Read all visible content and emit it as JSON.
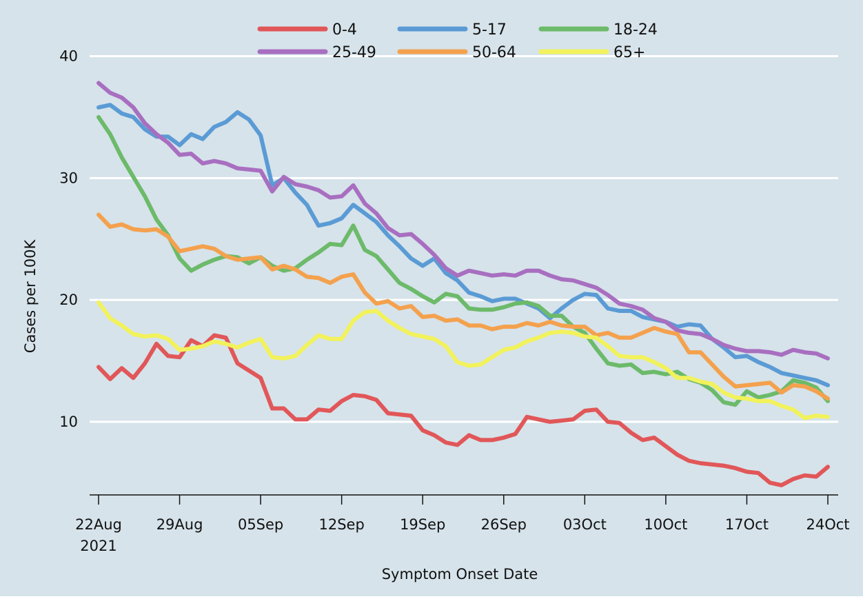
{
  "chart_data": {
    "type": "line",
    "title": "",
    "xlabel": "Symptom Onset Date",
    "ylabel": "Cases per 100K",
    "ylim": [
      4,
      41.5
    ],
    "yticks": [
      10,
      20,
      30,
      40
    ],
    "xlim": [
      0,
      63
    ],
    "xticks": [
      {
        "pos": 0,
        "label": "22Aug",
        "sublabel": "2021"
      },
      {
        "pos": 7,
        "label": "29Aug",
        "sublabel": ""
      },
      {
        "pos": 14,
        "label": "05Sep",
        "sublabel": ""
      },
      {
        "pos": 21,
        "label": "12Sep",
        "sublabel": ""
      },
      {
        "pos": 28,
        "label": "19Sep",
        "sublabel": ""
      },
      {
        "pos": 35,
        "label": "26Sep",
        "sublabel": ""
      },
      {
        "pos": 42,
        "label": "03Oct",
        "sublabel": ""
      },
      {
        "pos": 49,
        "label": "10Oct",
        "sublabel": ""
      },
      {
        "pos": 56,
        "label": "17Oct",
        "sublabel": ""
      },
      {
        "pos": 63,
        "label": "24Oct",
        "sublabel": ""
      }
    ],
    "grid": "horizontal",
    "legend_position": "top",
    "background": "#d6e3ea",
    "series": [
      {
        "name": "0-4",
        "color": "#e15759",
        "x": [
          0,
          1,
          2,
          3,
          4,
          5,
          6,
          7,
          8,
          9,
          10,
          11,
          12,
          13,
          14,
          15,
          16,
          17,
          18,
          19,
          20,
          21,
          22,
          23,
          24,
          25,
          26,
          27,
          28,
          29,
          30,
          31,
          32,
          33,
          34,
          35,
          36,
          37,
          38,
          39,
          40,
          41,
          42,
          43,
          44,
          45,
          46,
          47,
          48,
          49,
          50,
          51,
          52,
          53,
          54,
          55,
          56,
          57,
          58,
          59,
          60,
          61,
          62,
          63
        ],
        "values": [
          14.5,
          13.5,
          14.4,
          13.6,
          14.8,
          16.4,
          15.4,
          15.3,
          16.7,
          16.2,
          17.1,
          16.9,
          14.8,
          14.2,
          13.6,
          11.1,
          11.1,
          10.2,
          10.2,
          11.0,
          10.9,
          11.7,
          12.2,
          12.1,
          11.8,
          10.7,
          10.6,
          10.5,
          9.3,
          8.9,
          8.3,
          8.1,
          8.9,
          8.5,
          8.5,
          8.7,
          9.0,
          10.4,
          10.2,
          10.0,
          10.1,
          10.2,
          10.9,
          11.0,
          10.0,
          9.9,
          9.1,
          8.5,
          8.7,
          8.0,
          7.3,
          6.8,
          6.6,
          6.5,
          6.4,
          6.2,
          5.9,
          5.8,
          5.0,
          4.8,
          5.3,
          5.6,
          5.5,
          6.3
        ]
      },
      {
        "name": "5-17",
        "color": "#5b9bd5",
        "x": [
          0,
          1,
          2,
          3,
          4,
          5,
          6,
          7,
          8,
          9,
          10,
          11,
          12,
          13,
          14,
          15,
          16,
          17,
          18,
          19,
          20,
          21,
          22,
          23,
          24,
          25,
          26,
          27,
          28,
          29,
          30,
          31,
          32,
          33,
          34,
          35,
          36,
          37,
          38,
          39,
          40,
          41,
          42,
          43,
          44,
          45,
          46,
          47,
          48,
          49,
          50,
          51,
          52,
          53,
          54,
          55,
          56,
          57,
          58,
          59,
          60,
          61,
          62,
          63
        ],
        "values": [
          35.8,
          36.0,
          35.3,
          35.0,
          34.0,
          33.4,
          33.4,
          32.7,
          33.6,
          33.2,
          34.2,
          34.6,
          35.4,
          34.8,
          33.5,
          29.4,
          30.0,
          28.8,
          27.8,
          26.1,
          26.3,
          26.7,
          27.8,
          27.1,
          26.4,
          25.3,
          24.4,
          23.4,
          22.8,
          23.4,
          22.2,
          21.6,
          20.6,
          20.3,
          19.9,
          20.1,
          20.1,
          19.7,
          19.3,
          18.5,
          19.3,
          20.0,
          20.5,
          20.4,
          19.3,
          19.1,
          19.1,
          18.6,
          18.4,
          18.2,
          17.8,
          18.0,
          17.9,
          16.8,
          16.1,
          15.3,
          15.4,
          14.9,
          14.5,
          14.0,
          13.8,
          13.6,
          13.4,
          13.0
        ]
      },
      {
        "name": "18-24",
        "color": "#6cba6a",
        "x": [
          0,
          1,
          2,
          3,
          4,
          5,
          6,
          7,
          8,
          9,
          10,
          11,
          12,
          13,
          14,
          15,
          16,
          17,
          18,
          19,
          20,
          21,
          22,
          23,
          24,
          25,
          26,
          27,
          28,
          29,
          30,
          31,
          32,
          33,
          34,
          35,
          36,
          37,
          38,
          39,
          40,
          41,
          42,
          43,
          44,
          45,
          46,
          47,
          48,
          49,
          50,
          51,
          52,
          53,
          54,
          55,
          56,
          57,
          58,
          59,
          60,
          61,
          62,
          63
        ],
        "values": [
          35.0,
          33.6,
          31.7,
          30.1,
          28.5,
          26.6,
          25.3,
          23.4,
          22.4,
          22.9,
          23.3,
          23.6,
          23.5,
          23.0,
          23.5,
          22.8,
          22.4,
          22.6,
          23.3,
          23.9,
          24.6,
          24.5,
          26.1,
          24.1,
          23.6,
          22.5,
          21.4,
          20.9,
          20.3,
          19.8,
          20.5,
          20.3,
          19.3,
          19.2,
          19.2,
          19.4,
          19.7,
          19.8,
          19.5,
          18.7,
          18.7,
          17.8,
          17.3,
          16.0,
          14.8,
          14.6,
          14.7,
          14.0,
          14.1,
          13.9,
          14.1,
          13.5,
          13.2,
          12.6,
          11.6,
          11.4,
          12.5,
          12.0,
          12.2,
          12.5,
          13.4,
          13.2,
          12.8,
          11.7
        ]
      },
      {
        "name": "25-49",
        "color": "#a86fc0",
        "x": [
          0,
          1,
          2,
          3,
          4,
          5,
          6,
          7,
          8,
          9,
          10,
          11,
          12,
          13,
          14,
          15,
          16,
          17,
          18,
          19,
          20,
          21,
          22,
          23,
          24,
          25,
          26,
          27,
          28,
          29,
          30,
          31,
          32,
          33,
          34,
          35,
          36,
          37,
          38,
          39,
          40,
          41,
          42,
          43,
          44,
          45,
          46,
          47,
          48,
          49,
          50,
          51,
          52,
          53,
          54,
          55,
          56,
          57,
          58,
          59,
          60,
          61,
          62,
          63
        ],
        "values": [
          37.8,
          37.0,
          36.6,
          35.8,
          34.5,
          33.6,
          32.9,
          31.9,
          32.0,
          31.2,
          31.4,
          31.2,
          30.8,
          30.7,
          30.6,
          28.9,
          30.1,
          29.5,
          29.3,
          29.0,
          28.4,
          28.5,
          29.4,
          27.9,
          27.1,
          25.9,
          25.3,
          25.4,
          24.6,
          23.7,
          22.6,
          22.0,
          22.4,
          22.2,
          22.0,
          22.1,
          22.0,
          22.4,
          22.4,
          22.0,
          21.7,
          21.6,
          21.3,
          21.0,
          20.4,
          19.7,
          19.5,
          19.2,
          18.5,
          18.2,
          17.5,
          17.3,
          17.2,
          16.8,
          16.3,
          16.0,
          15.8,
          15.8,
          15.7,
          15.5,
          15.9,
          15.7,
          15.6,
          15.2
        ]
      },
      {
        "name": "50-64",
        "color": "#f4a14e",
        "x": [
          0,
          1,
          2,
          3,
          4,
          5,
          6,
          7,
          8,
          9,
          10,
          11,
          12,
          13,
          14,
          15,
          16,
          17,
          18,
          19,
          20,
          21,
          22,
          23,
          24,
          25,
          26,
          27,
          28,
          29,
          30,
          31,
          32,
          33,
          34,
          35,
          36,
          37,
          38,
          39,
          40,
          41,
          42,
          43,
          44,
          45,
          46,
          47,
          48,
          49,
          50,
          51,
          52,
          53,
          54,
          55,
          56,
          57,
          58,
          59,
          60,
          61,
          62,
          63
        ],
        "values": [
          27.0,
          26.0,
          26.2,
          25.8,
          25.7,
          25.8,
          25.2,
          24.0,
          24.2,
          24.4,
          24.2,
          23.6,
          23.3,
          23.4,
          23.5,
          22.5,
          22.8,
          22.5,
          21.9,
          21.8,
          21.4,
          21.9,
          22.1,
          20.6,
          19.7,
          19.9,
          19.3,
          19.5,
          18.6,
          18.7,
          18.3,
          18.4,
          17.9,
          17.9,
          17.6,
          17.8,
          17.8,
          18.1,
          17.9,
          18.2,
          17.9,
          17.8,
          17.8,
          17.1,
          17.3,
          16.9,
          16.9,
          17.3,
          17.7,
          17.4,
          17.2,
          15.7,
          15.7,
          14.7,
          13.7,
          12.9,
          13.0,
          13.1,
          13.2,
          12.4,
          13.0,
          12.9,
          12.5,
          11.9
        ]
      },
      {
        "name": "65+",
        "color": "#f2f25c",
        "x": [
          0,
          1,
          2,
          3,
          4,
          5,
          6,
          7,
          8,
          9,
          10,
          11,
          12,
          13,
          14,
          15,
          16,
          17,
          18,
          19,
          20,
          21,
          22,
          23,
          24,
          25,
          26,
          27,
          28,
          29,
          30,
          31,
          32,
          33,
          34,
          35,
          36,
          37,
          38,
          39,
          40,
          41,
          42,
          43,
          44,
          45,
          46,
          47,
          48,
          49,
          50,
          51,
          52,
          53,
          54,
          55,
          56,
          57,
          58,
          59,
          60,
          61,
          62,
          63
        ],
        "values": [
          19.8,
          18.5,
          17.9,
          17.2,
          17.0,
          17.1,
          16.8,
          15.9,
          16.0,
          16.2,
          16.6,
          16.4,
          16.1,
          16.5,
          16.8,
          15.3,
          15.2,
          15.4,
          16.3,
          17.1,
          16.8,
          16.8,
          18.3,
          19.0,
          19.1,
          18.3,
          17.7,
          17.2,
          17.0,
          16.8,
          16.2,
          14.9,
          14.6,
          14.7,
          15.3,
          15.9,
          16.1,
          16.6,
          16.9,
          17.3,
          17.4,
          17.3,
          17.0,
          16.9,
          16.2,
          15.4,
          15.3,
          15.3,
          14.9,
          14.4,
          13.6,
          13.6,
          13.3,
          13.1,
          12.4,
          12.0,
          11.9,
          11.7,
          11.7,
          11.3,
          11.0,
          10.3,
          10.5,
          10.4
        ]
      }
    ]
  }
}
